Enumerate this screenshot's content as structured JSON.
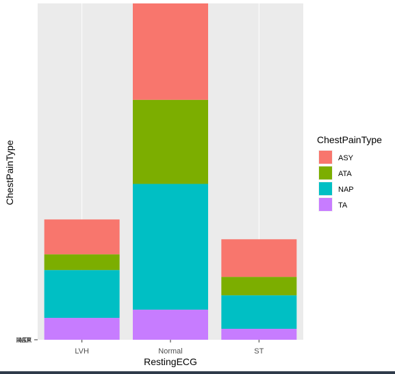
{
  "chart_data": {
    "type": "bar",
    "stacked": true,
    "xlabel": "RestingECG",
    "ylabel": "ChestPainType",
    "categories": [
      "LVH",
      "Normal",
      "ST"
    ],
    "series": [
      {
        "name": "TA",
        "color": "#C77CFF",
        "values": [
          32,
          44,
          16
        ]
      },
      {
        "name": "NAP",
        "color": "#00BFC4",
        "values": [
          70,
          184,
          49
        ]
      },
      {
        "name": "ATA",
        "color": "#7CAE00",
        "values": [
          23,
          123,
          27
        ]
      },
      {
        "name": "ASY",
        "color": "#F8766D",
        "values": [
          51,
          141,
          55
        ]
      }
    ],
    "ylim": [
      0,
      492
    ],
    "y_tick_labels": [
      "NAP",
      "TA",
      "ATA",
      "ASY"
    ],
    "legend": {
      "title": "ChestPainType",
      "position": "right",
      "order": [
        "ASY",
        "ATA",
        "NAP",
        "TA"
      ]
    },
    "grid": true,
    "panel_background": "#EBEBEB",
    "grid_color": "#FFFFFF"
  }
}
